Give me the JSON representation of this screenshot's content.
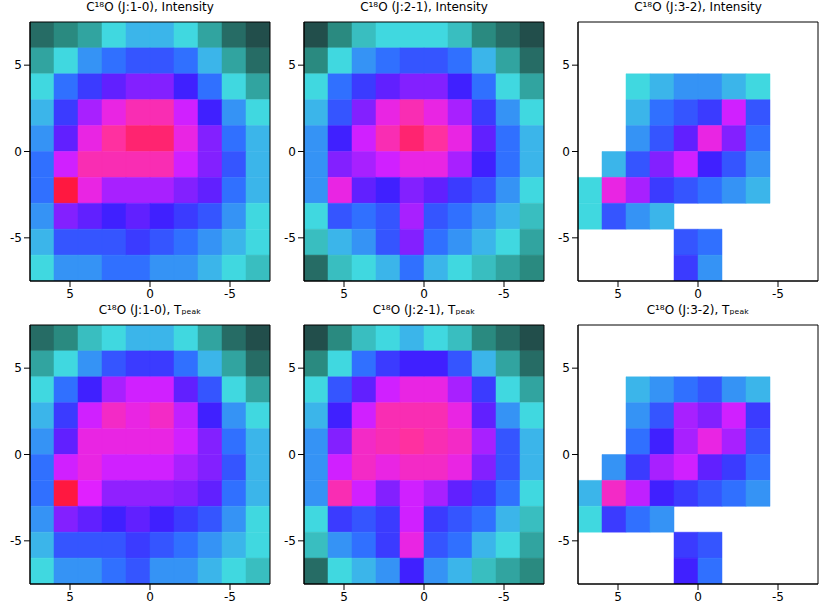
{
  "chart_data": [
    {
      "type": "heatmap",
      "title": "C¹⁸O (J:1-0), Intensity",
      "xlim": [
        7.5,
        -7.5
      ],
      "ylim": [
        -7.5,
        7.5
      ],
      "xticks": [
        5,
        0,
        -5
      ],
      "yticks": [
        -5,
        0,
        5
      ],
      "x": [
        6.75,
        5.25,
        3.75,
        2.25,
        0.75,
        -0.75,
        -2.25,
        -3.75,
        -5.25,
        -6.75
      ],
      "y": [
        6.75,
        5.25,
        3.75,
        2.25,
        0.75,
        -0.75,
        -2.25,
        -3.75,
        -5.25,
        -6.75
      ],
      "cells": [
        [
          0.1,
          0.15,
          0.2,
          0.3,
          0.35,
          0.35,
          0.3,
          0.2,
          0.1,
          0.05
        ],
        [
          0.2,
          0.3,
          0.4,
          0.45,
          0.5,
          0.5,
          0.45,
          0.35,
          0.2,
          0.1
        ],
        [
          0.3,
          0.45,
          0.55,
          0.65,
          0.7,
          0.7,
          0.6,
          0.45,
          0.3,
          0.2
        ],
        [
          0.35,
          0.55,
          0.75,
          0.85,
          0.9,
          0.9,
          0.8,
          0.6,
          0.4,
          0.3
        ],
        [
          0.4,
          0.65,
          0.85,
          0.92,
          0.95,
          0.95,
          0.85,
          0.7,
          0.45,
          0.35
        ],
        [
          0.45,
          0.8,
          0.9,
          0.9,
          0.9,
          0.9,
          0.8,
          0.7,
          0.5,
          0.35
        ],
        [
          0.45,
          0.98,
          0.85,
          0.75,
          0.75,
          0.75,
          0.7,
          0.65,
          0.45,
          0.35
        ],
        [
          0.4,
          0.7,
          0.65,
          0.6,
          0.65,
          0.6,
          0.55,
          0.5,
          0.4,
          0.3
        ],
        [
          0.35,
          0.5,
          0.5,
          0.5,
          0.55,
          0.5,
          0.45,
          0.4,
          0.35,
          0.3
        ],
        [
          0.3,
          0.4,
          0.4,
          0.45,
          0.45,
          0.4,
          0.4,
          0.35,
          0.3,
          0.25
        ]
      ]
    },
    {
      "type": "heatmap",
      "title": "C¹⁸O (J:2-1), Intensity",
      "xlim": [
        7.5,
        -7.5
      ],
      "ylim": [
        -7.5,
        7.5
      ],
      "xticks": [
        5,
        0,
        -5
      ],
      "yticks": [
        -5,
        0,
        5
      ],
      "x": [
        6.75,
        5.25,
        3.75,
        2.25,
        0.75,
        -0.75,
        -2.25,
        -3.75,
        -5.25,
        -6.75
      ],
      "y": [
        6.75,
        5.25,
        3.75,
        2.25,
        0.75,
        -0.75,
        -2.25,
        -3.75,
        -5.25,
        -6.75
      ],
      "cells": [
        [
          0.05,
          0.15,
          0.25,
          0.3,
          0.3,
          0.3,
          0.25,
          0.15,
          0.1,
          0.05
        ],
        [
          0.15,
          0.3,
          0.4,
          0.45,
          0.5,
          0.5,
          0.45,
          0.35,
          0.2,
          0.1
        ],
        [
          0.3,
          0.45,
          0.55,
          0.65,
          0.7,
          0.7,
          0.6,
          0.45,
          0.3,
          0.2
        ],
        [
          0.35,
          0.5,
          0.7,
          0.85,
          0.9,
          0.85,
          0.75,
          0.55,
          0.4,
          0.3
        ],
        [
          0.4,
          0.6,
          0.8,
          0.9,
          0.95,
          0.92,
          0.85,
          0.65,
          0.45,
          0.35
        ],
        [
          0.4,
          0.7,
          0.75,
          0.8,
          0.85,
          0.85,
          0.75,
          0.6,
          0.45,
          0.35
        ],
        [
          0.4,
          0.85,
          0.65,
          0.6,
          0.7,
          0.65,
          0.55,
          0.5,
          0.4,
          0.3
        ],
        [
          0.3,
          0.5,
          0.45,
          0.5,
          0.75,
          0.5,
          0.45,
          0.4,
          0.35,
          0.25
        ],
        [
          0.25,
          0.35,
          0.4,
          0.5,
          0.7,
          0.45,
          0.4,
          0.35,
          0.3,
          0.2
        ],
        [
          0.1,
          0.25,
          0.3,
          0.35,
          0.45,
          0.35,
          0.3,
          0.25,
          0.2,
          0.15
        ]
      ]
    },
    {
      "type": "heatmap",
      "title": "C¹⁸O (J:3-2), Intensity",
      "xlim": [
        7.5,
        -7.5
      ],
      "ylim": [
        -7.5,
        7.5
      ],
      "xticks": [
        5,
        0,
        -5
      ],
      "yticks": [
        -5,
        0,
        5
      ],
      "x": [
        6.75,
        5.25,
        3.75,
        2.25,
        0.75,
        -0.75,
        -2.25,
        -3.75,
        -5.25,
        -6.75
      ],
      "y": [
        6.75,
        5.25,
        3.75,
        2.25,
        0.75,
        -0.75,
        -2.25,
        -3.75,
        -5.25,
        -6.75
      ],
      "cells": [
        [
          null,
          null,
          null,
          null,
          null,
          null,
          null,
          null,
          null,
          null
        ],
        [
          null,
          null,
          null,
          null,
          null,
          null,
          null,
          null,
          null,
          null
        ],
        [
          null,
          null,
          0.3,
          0.35,
          0.4,
          0.4,
          0.35,
          0.3,
          null,
          null
        ],
        [
          null,
          null,
          0.35,
          0.45,
          0.5,
          0.55,
          0.8,
          0.5,
          null,
          null
        ],
        [
          null,
          null,
          0.4,
          0.5,
          0.65,
          0.85,
          0.7,
          0.45,
          null,
          null
        ],
        [
          null,
          0.35,
          0.5,
          0.7,
          0.8,
          0.6,
          0.5,
          0.4,
          null,
          null
        ],
        [
          0.3,
          0.85,
          0.75,
          0.55,
          0.5,
          0.45,
          0.4,
          0.35,
          null,
          null
        ],
        [
          0.3,
          0.5,
          0.4,
          0.35,
          null,
          null,
          null,
          null,
          null,
          null
        ],
        [
          null,
          null,
          null,
          null,
          0.5,
          0.45,
          null,
          null,
          null,
          null
        ],
        [
          null,
          null,
          null,
          null,
          0.55,
          0.4,
          null,
          null,
          null,
          null
        ]
      ]
    },
    {
      "type": "heatmap",
      "title": "C¹⁸O (J:1-0), Tₚₑₐₖ",
      "xlim": [
        7.5,
        -7.5
      ],
      "ylim": [
        -7.5,
        7.5
      ],
      "xticks": [
        5,
        0,
        -5
      ],
      "yticks": [
        -5,
        0,
        5
      ],
      "x": [
        6.75,
        5.25,
        3.75,
        2.25,
        0.75,
        -0.75,
        -2.25,
        -3.75,
        -5.25,
        -6.75
      ],
      "y": [
        6.75,
        5.25,
        3.75,
        2.25,
        0.75,
        -0.75,
        -2.25,
        -3.75,
        -5.25,
        -6.75
      ],
      "cells": [
        [
          0.1,
          0.15,
          0.25,
          0.3,
          0.35,
          0.35,
          0.3,
          0.2,
          0.1,
          0.05
        ],
        [
          0.2,
          0.3,
          0.4,
          0.5,
          0.55,
          0.55,
          0.45,
          0.35,
          0.2,
          0.1
        ],
        [
          0.3,
          0.45,
          0.6,
          0.75,
          0.8,
          0.8,
          0.65,
          0.5,
          0.3,
          0.2
        ],
        [
          0.35,
          0.55,
          0.8,
          0.88,
          0.85,
          0.88,
          0.78,
          0.6,
          0.4,
          0.3
        ],
        [
          0.4,
          0.65,
          0.85,
          0.85,
          0.85,
          0.85,
          0.8,
          0.7,
          0.45,
          0.35
        ],
        [
          0.45,
          0.8,
          0.85,
          0.8,
          0.8,
          0.8,
          0.75,
          0.7,
          0.5,
          0.35
        ],
        [
          0.45,
          0.98,
          0.82,
          0.72,
          0.72,
          0.72,
          0.7,
          0.65,
          0.45,
          0.35
        ],
        [
          0.4,
          0.7,
          0.65,
          0.6,
          0.65,
          0.6,
          0.55,
          0.5,
          0.4,
          0.3
        ],
        [
          0.35,
          0.5,
          0.5,
          0.5,
          0.55,
          0.5,
          0.45,
          0.4,
          0.35,
          0.3
        ],
        [
          0.3,
          0.4,
          0.4,
          0.45,
          0.5,
          0.4,
          0.4,
          0.35,
          0.3,
          0.25
        ]
      ]
    },
    {
      "type": "heatmap",
      "title": "C¹⁸O (J:2-1), Tₚₑₐₖ",
      "xlim": [
        7.5,
        -7.5
      ],
      "ylim": [
        -7.5,
        7.5
      ],
      "xticks": [
        5,
        0,
        -5
      ],
      "yticks": [
        -5,
        0,
        5
      ],
      "x": [
        6.75,
        5.25,
        3.75,
        2.25,
        0.75,
        -0.75,
        -2.25,
        -3.75,
        -5.25,
        -6.75
      ],
      "y": [
        6.75,
        5.25,
        3.75,
        2.25,
        0.75,
        -0.75,
        -2.25,
        -3.75,
        -5.25,
        -6.75
      ],
      "cells": [
        [
          0.05,
          0.15,
          0.25,
          0.3,
          0.35,
          0.3,
          0.25,
          0.15,
          0.1,
          0.05
        ],
        [
          0.15,
          0.3,
          0.45,
          0.55,
          0.6,
          0.6,
          0.5,
          0.35,
          0.2,
          0.1
        ],
        [
          0.3,
          0.5,
          0.65,
          0.8,
          0.85,
          0.85,
          0.75,
          0.55,
          0.3,
          0.2
        ],
        [
          0.35,
          0.6,
          0.8,
          0.9,
          0.9,
          0.9,
          0.85,
          0.65,
          0.4,
          0.3
        ],
        [
          0.4,
          0.7,
          0.88,
          0.9,
          0.92,
          0.9,
          0.88,
          0.75,
          0.5,
          0.35
        ],
        [
          0.4,
          0.8,
          0.88,
          0.85,
          0.88,
          0.88,
          0.85,
          0.7,
          0.5,
          0.35
        ],
        [
          0.4,
          0.9,
          0.8,
          0.7,
          0.8,
          0.75,
          0.65,
          0.55,
          0.45,
          0.3
        ],
        [
          0.3,
          0.55,
          0.5,
          0.55,
          0.8,
          0.55,
          0.5,
          0.45,
          0.35,
          0.25
        ],
        [
          0.25,
          0.4,
          0.45,
          0.55,
          0.85,
          0.5,
          0.45,
          0.35,
          0.3,
          0.2
        ],
        [
          0.1,
          0.3,
          0.35,
          0.4,
          0.6,
          0.4,
          0.35,
          0.25,
          0.2,
          0.15
        ]
      ]
    },
    {
      "type": "heatmap",
      "title": "C¹⁸O (J:3-2), Tₚₑₐₖ",
      "xlim": [
        7.5,
        -7.5
      ],
      "ylim": [
        -7.5,
        7.5
      ],
      "xticks": [
        5,
        0,
        -5
      ],
      "yticks": [
        -5,
        0,
        5
      ],
      "x": [
        6.75,
        5.25,
        3.75,
        2.25,
        0.75,
        -0.75,
        -2.25,
        -3.75,
        -5.25,
        -6.75
      ],
      "y": [
        6.75,
        5.25,
        3.75,
        2.25,
        0.75,
        -0.75,
        -2.25,
        -3.75,
        -5.25,
        -6.75
      ],
      "cells": [
        [
          null,
          null,
          null,
          null,
          null,
          null,
          null,
          null,
          null,
          null
        ],
        [
          null,
          null,
          null,
          null,
          null,
          null,
          null,
          null,
          null,
          null
        ],
        [
          null,
          null,
          0.35,
          0.4,
          0.45,
          0.5,
          0.4,
          0.35,
          null,
          null
        ],
        [
          null,
          null,
          0.4,
          0.5,
          0.75,
          0.7,
          0.8,
          0.55,
          null,
          null
        ],
        [
          null,
          null,
          0.45,
          0.6,
          0.75,
          0.85,
          0.75,
          0.5,
          null,
          null
        ],
        [
          null,
          0.4,
          0.55,
          0.75,
          0.8,
          0.65,
          0.55,
          0.45,
          null,
          null
        ],
        [
          0.35,
          0.88,
          0.78,
          0.6,
          0.55,
          0.5,
          0.45,
          0.4,
          null,
          null
        ],
        [
          0.3,
          0.55,
          0.45,
          0.4,
          null,
          null,
          null,
          null,
          null,
          null
        ],
        [
          null,
          null,
          null,
          null,
          0.55,
          0.5,
          null,
          null,
          null,
          null
        ],
        [
          null,
          null,
          null,
          null,
          0.6,
          0.45,
          null,
          null,
          null,
          null
        ]
      ]
    }
  ]
}
